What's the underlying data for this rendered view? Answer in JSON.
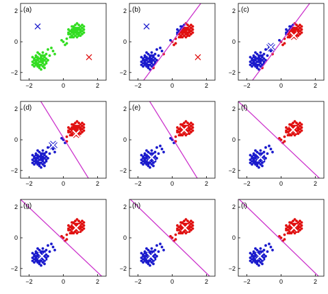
{
  "figure": {
    "rows": 3,
    "cols": 3
  },
  "chart_data": [
    {
      "panel_label": "(a)",
      "type": "scatter",
      "xlim": [
        -2.5,
        2.5
      ],
      "ylim": [
        -2.5,
        2.5
      ],
      "xticks": [
        -2,
        0,
        2
      ],
      "yticks": [
        -2,
        0,
        2
      ],
      "grid": false,
      "points": "unassigned",
      "boundary": null,
      "centroids": [
        {
          "x": -1.5,
          "y": 1.0,
          "color": "#1a1acc"
        },
        {
          "x": 1.5,
          "y": -1.0,
          "color": "#e01010"
        }
      ]
    },
    {
      "panel_label": "(b)",
      "type": "scatter",
      "xlim": [
        -2.5,
        2.5
      ],
      "ylim": [
        -2.5,
        2.5
      ],
      "xticks": [
        -2,
        0,
        2
      ],
      "yticks": [
        -2,
        0,
        2
      ],
      "grid": false,
      "points": "assigned",
      "boundary": {
        "a": 1.5,
        "b": -1.0,
        "c": 0
      },
      "centroids": [
        {
          "x": -1.5,
          "y": 1.0,
          "color": "#1a1acc"
        },
        {
          "x": 1.5,
          "y": -1.0,
          "color": "#e01010"
        }
      ]
    },
    {
      "panel_label": "(c)",
      "type": "scatter",
      "xlim": [
        -2.5,
        2.5
      ],
      "ylim": [
        -2.5,
        2.5
      ],
      "xticks": [
        -2,
        0,
        2
      ],
      "yticks": [
        -2,
        0,
        2
      ],
      "grid": false,
      "points": "assigned",
      "boundary": {
        "a": 1.5,
        "b": -1.0,
        "c": 0
      },
      "centroids": [
        {
          "x": -0.6,
          "y": -0.35,
          "color": "#1a1acc"
        },
        {
          "x": 0.75,
          "y": 0.4,
          "color": "#e01010"
        }
      ]
    },
    {
      "panel_label": "(d)",
      "type": "scatter",
      "xlim": [
        -2.5,
        2.5
      ],
      "ylim": [
        -2.5,
        2.5
      ],
      "xticks": [
        -2,
        0,
        2
      ],
      "yticks": [
        -2,
        0,
        2
      ],
      "grid": false,
      "points": "assigned",
      "boundary": {
        "a": 1.35,
        "b": 0.75,
        "c": -0.1
      },
      "centroids": [
        {
          "x": -0.6,
          "y": -0.35,
          "color": "#1a1acc"
        },
        {
          "x": 0.75,
          "y": 0.4,
          "color": "#e01010"
        }
      ]
    },
    {
      "panel_label": "(e)",
      "type": "scatter",
      "xlim": [
        -2.5,
        2.5
      ],
      "ylim": [
        -2.5,
        2.5
      ],
      "xticks": [
        -2,
        0,
        2
      ],
      "yticks": [
        -2,
        0,
        2
      ],
      "grid": false,
      "points": "assigned",
      "boundary": {
        "a": 1.35,
        "b": 0.75,
        "c": -0.1
      },
      "centroids": [
        {
          "x": -1.2,
          "y": -1.15,
          "color": "#1a1acc"
        },
        {
          "x": 0.7,
          "y": 0.65,
          "color": "#e01010"
        }
      ]
    },
    {
      "panel_label": "(f)",
      "type": "scatter",
      "xlim": [
        -2.5,
        2.5
      ],
      "ylim": [
        -2.5,
        2.5
      ],
      "xticks": [
        -2,
        0,
        2
      ],
      "yticks": [
        -2,
        0,
        2
      ],
      "grid": false,
      "points": "assigned",
      "boundary": {
        "a": 1.9,
        "b": 1.8,
        "c": 0.25
      },
      "centroids": [
        {
          "x": -1.2,
          "y": -1.15,
          "color": "#1a1acc"
        },
        {
          "x": 0.7,
          "y": 0.65,
          "color": "#e01010"
        }
      ]
    },
    {
      "panel_label": "(g)",
      "type": "scatter",
      "xlim": [
        -2.5,
        2.5
      ],
      "ylim": [
        -2.5,
        2.5
      ],
      "xticks": [
        -2,
        0,
        2
      ],
      "yticks": [
        -2,
        0,
        2
      ],
      "grid": false,
      "points": "assigned",
      "boundary": {
        "a": 1.9,
        "b": 1.8,
        "c": 0.25
      },
      "centroids": [
        {
          "x": -1.25,
          "y": -1.2,
          "color": "#1a1acc"
        },
        {
          "x": 0.75,
          "y": 0.65,
          "color": "#e01010"
        }
      ]
    },
    {
      "panel_label": "(h)",
      "type": "scatter",
      "xlim": [
        -2.5,
        2.5
      ],
      "ylim": [
        -2.5,
        2.5
      ],
      "xticks": [
        -2,
        0,
        2
      ],
      "yticks": [
        -2,
        0,
        2
      ],
      "grid": false,
      "points": "assigned",
      "boundary": {
        "a": 2.0,
        "b": 1.85,
        "c": 0.26
      },
      "centroids": [
        {
          "x": -1.25,
          "y": -1.2,
          "color": "#1a1acc"
        },
        {
          "x": 0.75,
          "y": 0.65,
          "color": "#e01010"
        }
      ]
    },
    {
      "panel_label": "(i)",
      "type": "scatter",
      "xlim": [
        -2.5,
        2.5
      ],
      "ylim": [
        -2.5,
        2.5
      ],
      "xticks": [
        -2,
        0,
        2
      ],
      "yticks": [
        -2,
        0,
        2
      ],
      "grid": false,
      "points": "assigned",
      "boundary": {
        "a": 2.0,
        "b": 1.85,
        "c": 0.26
      },
      "centroids": [
        {
          "x": -1.25,
          "y": -1.2,
          "color": "#1a1acc"
        },
        {
          "x": 0.75,
          "y": 0.65,
          "color": "#e01010"
        }
      ]
    }
  ],
  "colors": {
    "cluster_1": "#1a1acc",
    "cluster_2": "#e01010",
    "unassigned": "#33dd22",
    "boundary": "#cc33cc",
    "centroid_final": "#ffffff"
  },
  "dataset": {
    "cluster_1_points": [
      [
        -1.5,
        -1.2
      ],
      [
        -1.3,
        -1.0
      ],
      [
        -1.6,
        -1.4
      ],
      [
        -1.2,
        -1.3
      ],
      [
        -1.4,
        -0.8
      ],
      [
        -1.7,
        -1.1
      ],
      [
        -1.1,
        -1.5
      ],
      [
        -1.5,
        -1.6
      ],
      [
        -1.3,
        -1.8
      ],
      [
        -1.6,
        -0.9
      ],
      [
        -1.0,
        -1.1
      ],
      [
        -1.4,
        -1.3
      ],
      [
        -1.2,
        -0.7
      ],
      [
        -1.8,
        -1.3
      ],
      [
        -1.1,
        -0.9
      ],
      [
        -1.5,
        -1.0
      ],
      [
        -1.3,
        -1.5
      ],
      [
        -1.7,
        -1.6
      ],
      [
        -1.0,
        -1.4
      ],
      [
        -1.4,
        -1.7
      ],
      [
        -1.6,
        -1.2
      ],
      [
        -1.2,
        -1.1
      ],
      [
        -1.5,
        -0.7
      ],
      [
        -1.3,
        -1.2
      ],
      [
        -0.9,
        -1.2
      ],
      [
        -1.8,
        -1.0
      ],
      [
        -1.1,
        -1.7
      ],
      [
        -1.4,
        -1.1
      ],
      [
        -1.6,
        -1.5
      ],
      [
        -1.2,
        -1.6
      ],
      [
        -1.5,
        -1.4
      ],
      [
        -1.0,
        -0.8
      ],
      [
        -1.3,
        -0.9
      ],
      [
        -1.7,
        -1.4
      ],
      [
        -1.1,
        -1.2
      ],
      [
        -1.4,
        -1.5
      ],
      [
        -1.6,
        -1.0
      ],
      [
        -1.2,
        -1.4
      ],
      [
        -1.5,
        -1.1
      ],
      [
        -1.3,
        -1.3
      ],
      [
        -1.1,
        -1.0
      ],
      [
        -1.7,
        -1.2
      ],
      [
        -1.2,
        -0.9
      ],
      [
        -1.4,
        -1.6
      ],
      [
        -1.6,
        -1.3
      ],
      [
        -1.0,
        -1.3
      ],
      [
        -1.5,
        -1.5
      ],
      [
        -1.3,
        -1.1
      ],
      [
        -1.8,
        -1.5
      ],
      [
        -1.2,
        -1.2
      ],
      [
        -0.8,
        -0.9
      ],
      [
        -0.6,
        -0.6
      ],
      [
        -0.9,
        -0.5
      ],
      [
        -0.5,
        -0.8
      ],
      [
        -0.7,
        -0.4
      ]
    ],
    "cluster_2_points": [
      [
        0.6,
        0.6
      ],
      [
        0.8,
        0.8
      ],
      [
        0.5,
        0.4
      ],
      [
        0.9,
        0.5
      ],
      [
        0.7,
        0.9
      ],
      [
        1.0,
        0.7
      ],
      [
        0.4,
        0.7
      ],
      [
        0.6,
        1.0
      ],
      [
        0.8,
        0.3
      ],
      [
        1.1,
        0.9
      ],
      [
        0.3,
        0.5
      ],
      [
        0.7,
        0.6
      ],
      [
        0.9,
        1.1
      ],
      [
        0.5,
        0.8
      ],
      [
        1.2,
        0.6
      ],
      [
        0.6,
        0.3
      ],
      [
        0.8,
        0.7
      ],
      [
        1.0,
        1.0
      ],
      [
        0.4,
        0.3
      ],
      [
        0.7,
        0.4
      ],
      [
        0.9,
        0.8
      ],
      [
        0.5,
        1.0
      ],
      [
        1.1,
        0.5
      ],
      [
        0.6,
        0.7
      ],
      [
        0.8,
        1.2
      ],
      [
        0.3,
        0.8
      ],
      [
        1.0,
        0.4
      ],
      [
        0.7,
        0.8
      ],
      [
        0.5,
        0.6
      ],
      [
        0.9,
        0.6
      ],
      [
        1.2,
        0.8
      ],
      [
        0.6,
        0.9
      ],
      [
        0.8,
        0.5
      ],
      [
        0.4,
        0.5
      ],
      [
        1.0,
        0.8
      ],
      [
        0.7,
        1.1
      ],
      [
        0.5,
        0.3
      ],
      [
        0.9,
        0.9
      ],
      [
        1.1,
        0.7
      ],
      [
        0.6,
        0.5
      ],
      [
        0.8,
        0.9
      ],
      [
        0.3,
        0.6
      ],
      [
        1.0,
        0.6
      ],
      [
        0.7,
        0.7
      ],
      [
        0.5,
        0.7
      ],
      [
        0.9,
        0.4
      ],
      [
        1.2,
        1.0
      ],
      [
        0.6,
        0.8
      ],
      [
        0.8,
        0.6
      ],
      [
        1.1,
        1.1
      ],
      [
        0.2,
        0.2
      ],
      [
        0.0,
        0.0
      ],
      [
        0.1,
        -0.2
      ],
      [
        -0.1,
        0.1
      ],
      [
        0.2,
        -0.1
      ]
    ]
  }
}
